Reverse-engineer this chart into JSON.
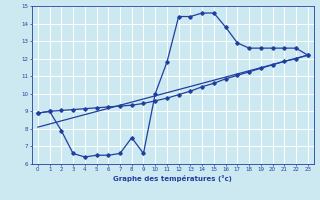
{
  "background_color": "#cce8f0",
  "line_color": "#2040a0",
  "grid_color": "#ffffff",
  "xlabel": "Graphe des températures (°c)",
  "xlim": [
    -0.5,
    23.5
  ],
  "ylim": [
    6,
    15
  ],
  "yticks": [
    6,
    7,
    8,
    9,
    10,
    11,
    12,
    13,
    14,
    15
  ],
  "xticks": [
    0,
    1,
    2,
    3,
    4,
    5,
    6,
    7,
    8,
    9,
    10,
    11,
    12,
    13,
    14,
    15,
    16,
    17,
    18,
    19,
    20,
    21,
    22,
    23
  ],
  "curve1_x": [
    0,
    1,
    2,
    3,
    4,
    5,
    6,
    7,
    8,
    9,
    10,
    11,
    12,
    13,
    14,
    15,
    16,
    17,
    18,
    19,
    20,
    21,
    22,
    23
  ],
  "curve1_y": [
    8.9,
    9.0,
    7.9,
    6.6,
    6.4,
    6.5,
    6.5,
    6.6,
    7.5,
    6.6,
    10.0,
    11.8,
    14.4,
    14.4,
    14.6,
    14.6,
    13.8,
    12.9,
    12.6,
    12.6,
    12.6,
    12.6,
    12.6,
    12.2
  ],
  "curve2_x": [
    0,
    1,
    2,
    3,
    4,
    5,
    6,
    7,
    8,
    9,
    10,
    11,
    12,
    13,
    14,
    15,
    16,
    17,
    18,
    19,
    20,
    21,
    22,
    23
  ],
  "curve2_y": [
    8.9,
    9.0,
    9.05,
    9.1,
    9.15,
    9.2,
    9.25,
    9.3,
    9.35,
    9.45,
    9.6,
    9.75,
    9.95,
    10.15,
    10.4,
    10.6,
    10.85,
    11.05,
    11.25,
    11.45,
    11.65,
    11.85,
    12.0,
    12.2
  ],
  "curve3_x": [
    0,
    23
  ],
  "curve3_y": [
    8.1,
    12.2
  ]
}
